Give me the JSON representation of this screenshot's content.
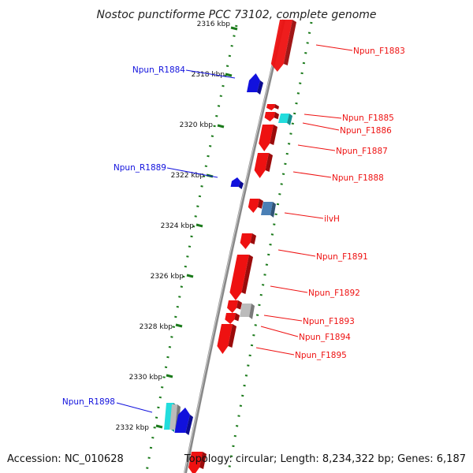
{
  "title": "Nostoc punctiforme PCC 73102, complete genome",
  "footer": {
    "accession": "Accession: NC_010628",
    "summary": "Topology: circular; Length: 8,234,322 bp; Genes: 6,187"
  },
  "colors": {
    "forward_gene": "#ee1111",
    "reverse_gene": "#1111dd",
    "cyan_gene": "#22dddd",
    "steelblue_gene": "#4a7fb5",
    "gray_gene": "#bbbbbb",
    "backbone": "#888888",
    "tick": "#1a7a1a"
  },
  "ticks": [
    {
      "label": "2316 kbp"
    },
    {
      "label": "2318 kbp"
    },
    {
      "label": "2320 kbp"
    },
    {
      "label": "2322 kbp"
    },
    {
      "label": "2324 kbp"
    },
    {
      "label": "2326 kbp"
    },
    {
      "label": "2328 kbp"
    },
    {
      "label": "2330 kbp"
    },
    {
      "label": "2332 kbp"
    }
  ],
  "genes_forward": [
    {
      "label": "Npun_F1883"
    },
    {
      "label": "Npun_F1885"
    },
    {
      "label": "Npun_F1886"
    },
    {
      "label": "Npun_F1887"
    },
    {
      "label": "Npun_F1888"
    },
    {
      "label": "ilvH"
    },
    {
      "label": "Npun_F1891"
    },
    {
      "label": "Npun_F1892"
    },
    {
      "label": "Npun_F1893"
    },
    {
      "label": "Npun_F1894"
    },
    {
      "label": "Npun_F1895"
    }
  ],
  "genes_reverse": [
    {
      "label": "Npun_R1884"
    },
    {
      "label": "Npun_R1889"
    },
    {
      "label": "Npun_R1898"
    }
  ]
}
